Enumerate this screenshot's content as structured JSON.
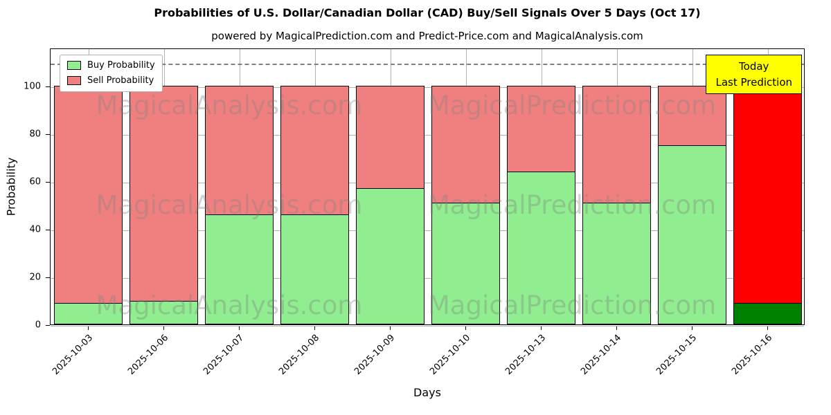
{
  "title": "Probabilities of U.S. Dollar/Canadian Dollar (CAD) Buy/Sell Signals Over 5 Days (Oct 17)",
  "subtitle": "powered by MagicalPrediction.com and Predict-Price.com and MagicalAnalysis.com",
  "legend": {
    "buy_label": "Buy Probability",
    "sell_label": "Sell Probability"
  },
  "annotation": {
    "line1": "Today",
    "line2": "Last Prediction"
  },
  "watermarks": {
    "left": "MagicalAnalysis.com",
    "right": "MagicalPrediction.com"
  },
  "colors": {
    "buy": "#90ee90",
    "sell": "#f08080",
    "today_buy": "#008000",
    "today_sell": "#ff0000",
    "annotation_bg": "#ffff00",
    "grid": "#b0b0b0",
    "dashed_line": "#7f7f7f",
    "watermark": "rgba(128,128,128,0.35)"
  },
  "chart_data": {
    "type": "bar",
    "stacked": true,
    "title": "Probabilities of U.S. Dollar/Canadian Dollar (CAD) Buy/Sell Signals Over 5 Days (Oct 17)",
    "xlabel": "Days",
    "ylabel": "Probability",
    "categories": [
      "2025-10-03",
      "2025-10-06",
      "2025-10-07",
      "2025-10-08",
      "2025-10-09",
      "2025-10-10",
      "2025-10-13",
      "2025-10-14",
      "2025-10-15",
      "2025-10-16"
    ],
    "series": [
      {
        "name": "Buy Probability",
        "color": "#90ee90",
        "values": [
          9,
          10,
          46,
          46,
          57,
          51,
          64,
          51,
          75,
          9
        ]
      },
      {
        "name": "Sell Probability",
        "color": "#f08080",
        "values": [
          91,
          90,
          54,
          54,
          43,
          49,
          36,
          49,
          25,
          91
        ]
      }
    ],
    "today_index": 9,
    "today_colors": {
      "buy": "#008000",
      "sell": "#ff0000"
    },
    "yticks": [
      0,
      20,
      40,
      60,
      80,
      100
    ],
    "ylim": [
      0,
      116
    ],
    "dashed_line_y": 110,
    "grid": true,
    "legend_position": "upper left",
    "bar_width_fraction": 0.9
  }
}
